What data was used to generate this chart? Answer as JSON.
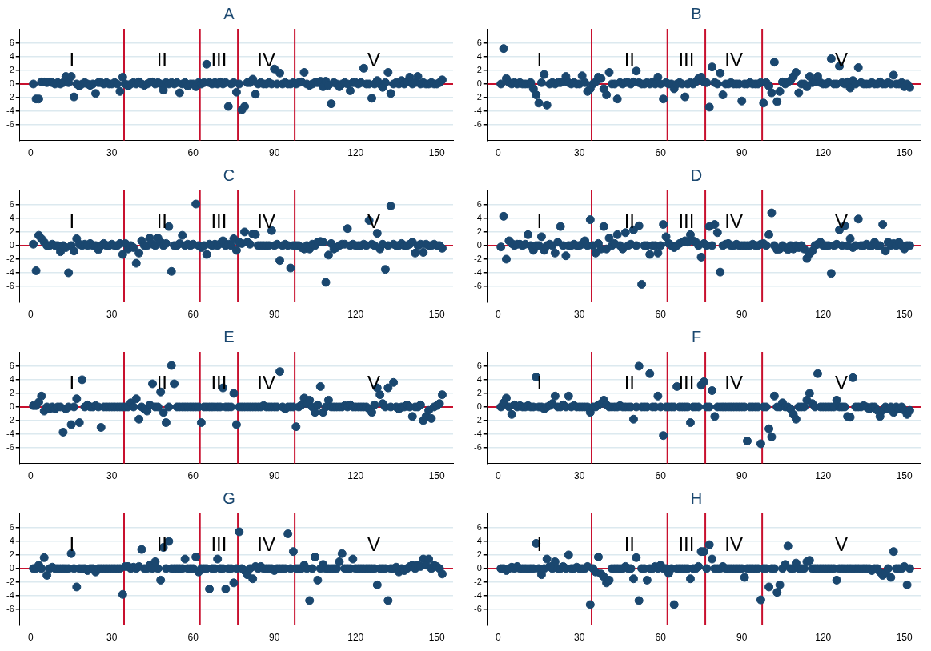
{
  "chart_data": [
    {
      "type": "scatter",
      "title": "A",
      "marker": "circle",
      "grid": "y",
      "color": "#1a476f",
      "xlim": [
        -4,
        156
      ],
      "xticks": [
        0,
        30,
        60,
        90,
        120,
        150
      ],
      "ylim": [
        -8.3,
        8.1
      ],
      "yticks": [
        -6,
        -4,
        -2,
        0,
        2,
        4,
        6
      ],
      "ref_lines": [
        {
          "axis": "y",
          "value": 0,
          "color": "#c8102e"
        },
        {
          "axis": "x",
          "value": 34.5,
          "color": "#c8102e"
        },
        {
          "axis": "x",
          "value": 62.5,
          "color": "#c8102e"
        },
        {
          "axis": "x",
          "value": 76.5,
          "color": "#c8102e"
        },
        {
          "axis": "x",
          "value": 97.5,
          "color": "#c8102e"
        }
      ],
      "annotations": [
        "I",
        "II",
        "III",
        "IV",
        "V"
      ],
      "x": [
        1,
        2,
        3,
        4,
        5,
        6,
        7,
        8,
        9,
        10,
        11,
        12,
        13,
        14,
        15,
        16,
        17,
        18,
        19,
        20,
        21,
        22,
        23,
        24,
        25,
        26,
        27,
        28,
        29,
        30,
        31,
        32,
        33,
        34,
        35,
        36,
        37,
        38,
        39,
        40,
        41,
        42,
        43,
        44,
        45,
        46,
        47,
        48,
        49,
        50,
        51,
        52,
        53,
        54,
        55,
        56,
        57,
        58,
        59,
        60,
        61,
        62,
        63,
        64,
        65,
        66,
        67,
        68,
        69,
        70,
        71,
        72,
        73,
        74,
        75,
        76,
        77,
        78,
        79,
        80,
        81,
        82,
        83,
        84,
        85,
        86,
        87,
        88,
        89,
        90,
        91,
        92,
        93,
        94,
        95,
        96,
        97,
        98,
        99,
        100,
        101,
        102,
        103,
        104,
        105,
        106,
        107,
        108,
        109,
        110,
        111,
        112,
        113,
        114,
        115,
        116,
        117,
        118,
        119,
        120,
        121,
        122,
        123,
        124,
        125,
        126,
        127,
        128,
        129,
        130,
        131,
        132,
        133,
        134,
        135,
        136,
        137,
        138,
        139,
        140,
        141,
        142,
        143,
        144,
        145,
        146,
        147,
        148,
        149,
        150,
        151,
        152
      ],
      "values": [
        0,
        -2.2,
        -2.2,
        0.3,
        0.3,
        0.2,
        0.3,
        0.2,
        0,
        0.2,
        0,
        0.2,
        1.1,
        0.2,
        1.1,
        -1.9,
        0,
        -0.3,
        0,
        0.2,
        0,
        -0.2,
        0,
        -1.4,
        0.2,
        0.2,
        0,
        0.2,
        0,
        0,
        0.2,
        0,
        -1.1,
        1,
        0,
        -0.3,
        0,
        0.2,
        0,
        0.3,
        0,
        -0.2,
        0,
        0.2,
        0.3,
        0,
        0.2,
        0,
        -0.9,
        0.2,
        0,
        0.2,
        0,
        0.2,
        -1.3,
        0,
        0.2,
        -0.3,
        0,
        0,
        -0.4,
        0.2,
        0,
        0.2,
        2.9,
        0.2,
        0,
        0.2,
        0,
        0.3,
        0,
        0.2,
        -3.3,
        0,
        0.2,
        -1.2,
        0,
        -3.8,
        -3.3,
        0.2,
        0.2,
        0.7,
        -1.5,
        0,
        0.2,
        0,
        0,
        0.2,
        0,
        2.2,
        0,
        1.6,
        0,
        0.2,
        0,
        0,
        0.2,
        0,
        0.2,
        0.3,
        1.7,
        0,
        -0.2,
        0,
        0.2,
        0.2,
        0.4,
        -0.4,
        0.4,
        -0.2,
        -2.9,
        0.2,
        0,
        -0.4,
        0,
        0.2,
        0,
        -1,
        0.2,
        0.2,
        0,
        0.2,
        2.3,
        0,
        0,
        -2.1,
        0,
        0.5,
        0,
        -0.5,
        0.2,
        1.7,
        -1.4,
        0,
        0.2,
        0,
        0.5,
        0,
        0.3,
        1,
        0,
        0.2,
        1.1,
        0,
        0.2,
        0,
        0,
        0.2,
        0,
        0,
        0.2,
        0.6
      ]
    },
    {
      "type": "scatter",
      "title": "B",
      "marker": "circle",
      "grid": "y",
      "color": "#1a476f",
      "xlim": [
        -4,
        156
      ],
      "xticks": [
        0,
        30,
        60,
        90,
        120,
        150
      ],
      "ylim": [
        -8.3,
        8.1
      ],
      "yticks": [
        -6,
        -4,
        -2,
        0,
        2,
        4,
        6
      ],
      "ref_lines": [
        {
          "axis": "y",
          "value": 0,
          "color": "#c8102e"
        },
        {
          "axis": "x",
          "value": 34.5,
          "color": "#c8102e"
        },
        {
          "axis": "x",
          "value": 62.5,
          "color": "#c8102e"
        },
        {
          "axis": "x",
          "value": 76.5,
          "color": "#c8102e"
        },
        {
          "axis": "x",
          "value": 97.5,
          "color": "#c8102e"
        }
      ],
      "annotations": [
        "I",
        "II",
        "III",
        "IV",
        "V"
      ],
      "x": [
        1,
        2,
        3,
        4,
        5,
        6,
        7,
        8,
        9,
        10,
        11,
        12,
        13,
        14,
        15,
        16,
        17,
        18,
        19,
        20,
        21,
        22,
        23,
        24,
        25,
        26,
        27,
        28,
        29,
        30,
        31,
        32,
        33,
        34,
        35,
        36,
        37,
        38,
        39,
        40,
        41,
        42,
        43,
        44,
        45,
        46,
        47,
        48,
        49,
        50,
        51,
        52,
        53,
        54,
        55,
        56,
        57,
        58,
        59,
        60,
        61,
        62,
        63,
        64,
        65,
        66,
        67,
        68,
        69,
        70,
        71,
        72,
        73,
        74,
        75,
        76,
        77,
        78,
        79,
        80,
        81,
        82,
        83,
        84,
        85,
        86,
        87,
        88,
        89,
        90,
        91,
        92,
        93,
        94,
        95,
        96,
        97,
        98,
        99,
        100,
        101,
        102,
        103,
        104,
        105,
        106,
        107,
        108,
        109,
        110,
        111,
        112,
        113,
        114,
        115,
        116,
        117,
        118,
        119,
        120,
        121,
        122,
        123,
        124,
        125,
        126,
        127,
        128,
        129,
        130,
        131,
        132,
        133,
        134,
        135,
        136,
        137,
        138,
        139,
        140,
        141,
        142,
        143,
        144,
        145,
        146,
        147,
        148,
        149,
        150,
        151,
        152
      ],
      "values": [
        0,
        5.2,
        0.8,
        0.2,
        0,
        0.2,
        0,
        0.2,
        0,
        0,
        0,
        0.2,
        -0.7,
        -1.6,
        -2.8,
        0.2,
        1.4,
        -3.1,
        0,
        0.2,
        0,
        0.2,
        0.2,
        0.3,
        1.1,
        0.2,
        0,
        0.2,
        0,
        0,
        1.2,
        0.2,
        -1.1,
        -0.7,
        0,
        0.3,
        1,
        0.8,
        -0.7,
        -1.6,
        1.7,
        0,
        0,
        -2.2,
        0.2,
        0,
        0.2,
        0.2,
        0,
        0.3,
        1.9,
        0.2,
        0,
        0,
        0.2,
        0,
        0.3,
        0,
        1,
        0,
        -2.2,
        0.2,
        0,
        0,
        -0.7,
        0,
        0.2,
        0,
        -1.9,
        0,
        0.2,
        0,
        0.3,
        0.8,
        1,
        0.3,
        0.2,
        -3.4,
        2.5,
        0.2,
        0,
        1.6,
        -1.6,
        0,
        0,
        0.2,
        0,
        0,
        0,
        -2.5,
        0,
        0,
        0.2,
        0,
        0,
        0,
        0.2,
        -2.8,
        0.2,
        -0.3,
        -1.3,
        3.2,
        -2.6,
        -1.1,
        0.3,
        0,
        0.3,
        0.5,
        1.1,
        1.7,
        -1.3,
        0,
        0,
        -0.4,
        1.1,
        0.2,
        0.3,
        1.1,
        0.2,
        0,
        0,
        0.2,
        3.7,
        0,
        0,
        2.6,
        0.2,
        0,
        0.3,
        -0.6,
        0.5,
        0,
        2.4,
        0.2,
        0,
        0,
        0,
        0.2,
        0,
        0,
        0.3,
        0,
        0,
        0.2,
        0,
        1.3,
        0,
        0,
        0.2,
        -0.4,
        0,
        -0.5
      ]
    },
    {
      "type": "scatter",
      "title": "C",
      "marker": "circle",
      "grid": "y",
      "color": "#1a476f",
      "xlim": [
        -4,
        156
      ],
      "xticks": [
        0,
        30,
        60,
        90,
        120,
        150
      ],
      "ylim": [
        -8.3,
        8.1
      ],
      "yticks": [
        -6,
        -4,
        -2,
        0,
        2,
        4,
        6
      ],
      "ref_lines": [
        {
          "axis": "y",
          "value": 0,
          "color": "#c8102e"
        },
        {
          "axis": "x",
          "value": 34.5,
          "color": "#c8102e"
        },
        {
          "axis": "x",
          "value": 62.5,
          "color": "#c8102e"
        },
        {
          "axis": "x",
          "value": 76.5,
          "color": "#c8102e"
        },
        {
          "axis": "x",
          "value": 97.5,
          "color": "#c8102e"
        }
      ],
      "annotations": [
        "I",
        "II",
        "III",
        "IV",
        "V"
      ],
      "x": [
        1,
        2,
        3,
        4,
        5,
        6,
        7,
        8,
        9,
        10,
        11,
        12,
        13,
        14,
        15,
        16,
        17,
        18,
        19,
        20,
        21,
        22,
        23,
        24,
        25,
        26,
        27,
        28,
        29,
        30,
        31,
        32,
        33,
        34,
        35,
        36,
        37,
        38,
        39,
        40,
        41,
        42,
        43,
        44,
        45,
        46,
        47,
        48,
        49,
        50,
        51,
        52,
        53,
        54,
        55,
        56,
        57,
        58,
        59,
        60,
        61,
        62,
        63,
        64,
        65,
        66,
        67,
        68,
        69,
        70,
        71,
        72,
        73,
        74,
        75,
        76,
        77,
        78,
        79,
        80,
        81,
        82,
        83,
        84,
        85,
        86,
        87,
        88,
        89,
        90,
        91,
        92,
        93,
        94,
        95,
        96,
        97,
        98,
        99,
        100,
        101,
        102,
        103,
        104,
        105,
        106,
        107,
        108,
        109,
        110,
        111,
        112,
        113,
        114,
        115,
        116,
        117,
        118,
        119,
        120,
        121,
        122,
        123,
        124,
        125,
        126,
        127,
        128,
        129,
        130,
        131,
        132,
        133,
        134,
        135,
        136,
        137,
        138,
        139,
        140,
        141,
        142,
        143,
        144,
        145,
        146,
        147,
        148,
        149,
        150,
        151,
        152
      ],
      "values": [
        0.2,
        -3.7,
        1.5,
        1,
        0.5,
        0,
        0,
        0.2,
        0,
        0,
        -0.9,
        0,
        -0.3,
        -4,
        0,
        -0.8,
        1,
        0.2,
        0,
        0.2,
        0,
        0.3,
        0,
        0,
        -0.6,
        0,
        0.3,
        0,
        0,
        0.2,
        0,
        0,
        0.3,
        -1.3,
        0.3,
        -0.5,
        0,
        -0.3,
        -2.6,
        -1.1,
        0.7,
        0,
        0,
        1.1,
        0.2,
        0,
        1.1,
        0.5,
        0,
        0.3,
        2.8,
        -3.8,
        0,
        0,
        0.3,
        1.5,
        0,
        0.2,
        0,
        0.2,
        6.1,
        0,
        -0.3,
        0,
        -1.3,
        0.2,
        0,
        0.2,
        0,
        0.3,
        0.7,
        0,
        0.2,
        0,
        1,
        -0.7,
        0.5,
        0.3,
        2,
        0.5,
        0.2,
        1.7,
        1.6,
        0,
        0,
        0,
        0,
        0,
        2.2,
        0,
        0.2,
        -2.2,
        0,
        0.2,
        0,
        -3.3,
        0,
        0,
        0,
        -0.3,
        -0.5,
        0,
        -0.5,
        0.2,
        0,
        0.5,
        0.6,
        0.5,
        -5.4,
        -1.4,
        0.3,
        -0.5,
        -0.3,
        0,
        0.2,
        0.2,
        2.5,
        0,
        0.2,
        0,
        0,
        0,
        0.2,
        0,
        3.7,
        0.2,
        0,
        1.8,
        -0.5,
        0.2,
        -3.5,
        0,
        5.8,
        0.2,
        0,
        0,
        0.3,
        0,
        0,
        0.2,
        0.5,
        -1.1,
        0,
        0.2,
        -1,
        0.2,
        0,
        0,
        0.2,
        0,
        0,
        -0.4
      ]
    },
    {
      "type": "scatter",
      "title": "D",
      "marker": "circle",
      "grid": "y",
      "color": "#1a476f",
      "xlim": [
        -4,
        156
      ],
      "xticks": [
        0,
        30,
        60,
        90,
        120,
        150
      ],
      "ylim": [
        -8.3,
        8.1
      ],
      "yticks": [
        -6,
        -4,
        -2,
        0,
        2,
        4,
        6
      ],
      "ref_lines": [
        {
          "axis": "y",
          "value": 0,
          "color": "#c8102e"
        },
        {
          "axis": "x",
          "value": 34.5,
          "color": "#c8102e"
        },
        {
          "axis": "x",
          "value": 62.5,
          "color": "#c8102e"
        },
        {
          "axis": "x",
          "value": 76.5,
          "color": "#c8102e"
        },
        {
          "axis": "x",
          "value": 97.5,
          "color": "#c8102e"
        }
      ],
      "annotations": [
        "I",
        "II",
        "III",
        "IV",
        "V"
      ],
      "x": [
        1,
        2,
        3,
        4,
        5,
        6,
        7,
        8,
        9,
        10,
        11,
        12,
        13,
        14,
        15,
        16,
        17,
        18,
        19,
        20,
        21,
        22,
        23,
        24,
        25,
        26,
        27,
        28,
        29,
        30,
        31,
        32,
        33,
        34,
        35,
        36,
        37,
        38,
        39,
        40,
        41,
        42,
        43,
        44,
        45,
        46,
        47,
        48,
        49,
        50,
        51,
        52,
        53,
        54,
        55,
        56,
        57,
        58,
        59,
        60,
        61,
        62,
        63,
        64,
        65,
        66,
        67,
        68,
        69,
        70,
        71,
        72,
        73,
        74,
        75,
        76,
        77,
        78,
        79,
        80,
        81,
        82,
        83,
        84,
        85,
        86,
        87,
        88,
        89,
        90,
        91,
        92,
        93,
        94,
        95,
        96,
        97,
        98,
        99,
        100,
        101,
        102,
        103,
        104,
        105,
        106,
        107,
        108,
        109,
        110,
        111,
        112,
        113,
        114,
        115,
        116,
        117,
        118,
        119,
        120,
        121,
        122,
        123,
        124,
        125,
        126,
        127,
        128,
        129,
        130,
        131,
        132,
        133,
        134,
        135,
        136,
        137,
        138,
        139,
        140,
        141,
        142,
        143,
        144,
        145,
        146,
        147,
        148,
        149,
        150,
        151,
        152
      ],
      "values": [
        -0.2,
        4.3,
        -2,
        0.7,
        0.3,
        0,
        0.2,
        0.2,
        0,
        0.2,
        1.6,
        0,
        -0.7,
        0,
        0,
        1.3,
        -0.7,
        0,
        0.2,
        0,
        -1.1,
        0.5,
        2.8,
        0,
        -1.5,
        0,
        0,
        0.2,
        0,
        0,
        0.2,
        0.7,
        0,
        3.8,
        0,
        -1.1,
        0.3,
        -0.5,
        2.8,
        -0.5,
        1.1,
        0,
        0.3,
        1.6,
        0,
        -0.5,
        1.9,
        0,
        0.2,
        2.3,
        0,
        2.9,
        -5.7,
        0,
        0,
        -1.3,
        0,
        0,
        -1.1,
        0,
        3.1,
        1.3,
        0.3,
        0,
        -0.3,
        0,
        0.3,
        0.5,
        0.7,
        0.5,
        1.6,
        0.7,
        0.5,
        0,
        -1.7,
        0.3,
        0,
        2.8,
        0,
        3.1,
        1.9,
        -3.9,
        0,
        0.2,
        0.3,
        0,
        0,
        0.2,
        0,
        0,
        0,
        0,
        0,
        0.2,
        0,
        0,
        0.2,
        0.3,
        0,
        1.6,
        4.8,
        0,
        -0.6,
        -0.5,
        0,
        -0.3,
        -0.6,
        0,
        -0.5,
        0,
        -0.3,
        0,
        -0.5,
        -1.9,
        -1.2,
        -0.8,
        0,
        0.2,
        0.5,
        0,
        0,
        0,
        -4.1,
        0,
        0.2,
        2.3,
        0,
        2.9,
        0,
        1,
        -0.3,
        0,
        3.9,
        0,
        0,
        0.2,
        0,
        0,
        0.5,
        0,
        0,
        3.1,
        -0.8,
        0.5,
        0,
        0.3,
        0,
        0.5,
        0,
        -0.5,
        0,
        0
      ]
    },
    {
      "type": "scatter",
      "title": "E",
      "marker": "circle",
      "grid": "y",
      "color": "#1a476f",
      "xlim": [
        -4,
        156
      ],
      "xticks": [
        0,
        30,
        60,
        90,
        120,
        150
      ],
      "ylim": [
        -8.3,
        8.1
      ],
      "yticks": [
        -6,
        -4,
        -2,
        0,
        2,
        4,
        6
      ],
      "ref_lines": [
        {
          "axis": "y",
          "value": 0,
          "color": "#c8102e"
        },
        {
          "axis": "x",
          "value": 34.5,
          "color": "#c8102e"
        },
        {
          "axis": "x",
          "value": 62.5,
          "color": "#c8102e"
        },
        {
          "axis": "x",
          "value": 76.5,
          "color": "#c8102e"
        },
        {
          "axis": "x",
          "value": 97.5,
          "color": "#c8102e"
        }
      ],
      "annotations": [
        "I",
        "II",
        "III",
        "IV",
        "V"
      ],
      "x": [
        1,
        2,
        3,
        4,
        5,
        6,
        7,
        8,
        9,
        10,
        11,
        12,
        13,
        14,
        15,
        16,
        17,
        18,
        19,
        20,
        21,
        22,
        23,
        24,
        25,
        26,
        27,
        28,
        29,
        30,
        31,
        32,
        33,
        34,
        35,
        36,
        37,
        38,
        39,
        40,
        41,
        42,
        43,
        44,
        45,
        46,
        47,
        48,
        49,
        50,
        51,
        52,
        53,
        54,
        55,
        56,
        57,
        58,
        59,
        60,
        61,
        62,
        63,
        64,
        65,
        66,
        67,
        68,
        69,
        70,
        71,
        72,
        73,
        74,
        75,
        76,
        77,
        78,
        79,
        80,
        81,
        82,
        83,
        84,
        85,
        86,
        87,
        88,
        89,
        90,
        91,
        92,
        93,
        94,
        95,
        96,
        97,
        98,
        99,
        100,
        101,
        102,
        103,
        104,
        105,
        106,
        107,
        108,
        109,
        110,
        111,
        112,
        113,
        114,
        115,
        116,
        117,
        118,
        119,
        120,
        121,
        122,
        123,
        124,
        125,
        126,
        127,
        128,
        129,
        130,
        131,
        132,
        133,
        134,
        135,
        136,
        137,
        138,
        139,
        140,
        141,
        142,
        143,
        144,
        145,
        146,
        147,
        148,
        149,
        150,
        151,
        152
      ],
      "values": [
        0.2,
        0.2,
        0.7,
        1.6,
        -0.6,
        0,
        -0.3,
        0,
        -0.3,
        0,
        0,
        -3.7,
        -0.3,
        0,
        -2.6,
        0,
        1.2,
        -2.3,
        4,
        0,
        0.3,
        0,
        0,
        0.2,
        0,
        -3,
        0,
        0,
        0,
        0,
        0,
        0,
        0,
        0,
        0,
        0,
        0.6,
        0,
        1.2,
        -1.8,
        0,
        -0.3,
        -0.6,
        0.3,
        3.4,
        0,
        0,
        2.2,
        -0.8,
        -2.3,
        0,
        6.1,
        3.4,
        0,
        0,
        0,
        0,
        0,
        0,
        0,
        0,
        0,
        -2.3,
        0,
        0,
        0,
        0,
        0,
        0,
        0,
        2.8,
        0,
        0,
        0,
        2,
        -2.6,
        0,
        0,
        0,
        0,
        0,
        0,
        0,
        0,
        0,
        0.2,
        0,
        0,
        0,
        0,
        0,
        5.2,
        0,
        -0.3,
        0,
        0,
        0,
        -2.9,
        0,
        0.3,
        1.3,
        0.5,
        1,
        0,
        -0.8,
        0.3,
        3,
        -0.8,
        0,
        1,
        0,
        0,
        0,
        0,
        0,
        0.2,
        0,
        0.3,
        0,
        0,
        0,
        0,
        0,
        0,
        -0.3,
        -0.8,
        0.3,
        2.8,
        1.8,
        0.5,
        0,
        2.8,
        0,
        3.6,
        0,
        -0.3,
        0,
        0,
        0.3,
        0,
        -1.4,
        0,
        0,
        0.3,
        -2,
        -1.4,
        -0.5,
        -1.7,
        0,
        0.2,
        0.5,
        1.8
      ]
    },
    {
      "type": "scatter",
      "title": "F",
      "marker": "circle",
      "grid": "y",
      "color": "#1a476f",
      "xlim": [
        -4,
        156
      ],
      "xticks": [
        0,
        30,
        60,
        90,
        120,
        150
      ],
      "ylim": [
        -8.3,
        8.1
      ],
      "yticks": [
        -6,
        -4,
        -2,
        0,
        2,
        4,
        6
      ],
      "ref_lines": [
        {
          "axis": "y",
          "value": 0,
          "color": "#c8102e"
        },
        {
          "axis": "x",
          "value": 34.5,
          "color": "#c8102e"
        },
        {
          "axis": "x",
          "value": 62.5,
          "color": "#c8102e"
        },
        {
          "axis": "x",
          "value": 76.5,
          "color": "#c8102e"
        },
        {
          "axis": "x",
          "value": 97.5,
          "color": "#c8102e"
        }
      ],
      "annotations": [
        "I",
        "II",
        "III",
        "IV",
        "V"
      ],
      "x": [
        1,
        2,
        3,
        4,
        5,
        6,
        7,
        8,
        9,
        10,
        11,
        12,
        13,
        14,
        15,
        16,
        17,
        18,
        19,
        20,
        21,
        22,
        23,
        24,
        25,
        26,
        27,
        28,
        29,
        30,
        31,
        32,
        33,
        34,
        35,
        36,
        37,
        38,
        39,
        40,
        41,
        42,
        43,
        44,
        45,
        46,
        47,
        48,
        49,
        50,
        51,
        52,
        53,
        54,
        55,
        56,
        57,
        58,
        59,
        60,
        61,
        62,
        63,
        64,
        65,
        66,
        67,
        68,
        69,
        70,
        71,
        72,
        73,
        74,
        75,
        76,
        77,
        78,
        79,
        80,
        81,
        82,
        83,
        84,
        85,
        86,
        87,
        88,
        89,
        90,
        91,
        92,
        93,
        94,
        95,
        96,
        97,
        98,
        99,
        100,
        101,
        102,
        103,
        104,
        105,
        106,
        107,
        108,
        109,
        110,
        111,
        112,
        113,
        114,
        115,
        116,
        117,
        118,
        119,
        120,
        121,
        122,
        123,
        124,
        125,
        126,
        127,
        128,
        129,
        130,
        131,
        132,
        133,
        134,
        135,
        136,
        137,
        138,
        139,
        140,
        141,
        142,
        143,
        144,
        145,
        146,
        147,
        148,
        149,
        150,
        151,
        152
      ],
      "values": [
        0,
        0.6,
        1.3,
        0,
        -1.1,
        0.3,
        0,
        0.2,
        0,
        0,
        0.2,
        0,
        0,
        4.4,
        0,
        0,
        -0.3,
        0,
        0.2,
        0.5,
        1.6,
        0,
        0,
        0.3,
        0,
        1.6,
        0,
        0.2,
        0,
        0,
        0,
        0,
        0,
        -0.8,
        0,
        0,
        0.3,
        0.5,
        1,
        0.3,
        0,
        0,
        0,
        0,
        0.2,
        0,
        0,
        0,
        0,
        -1.8,
        0,
        6,
        0,
        0,
        0,
        4.9,
        0,
        0,
        1.6,
        0,
        -4.2,
        0,
        0,
        0,
        0,
        3,
        0,
        0,
        0,
        0,
        -2.3,
        0,
        0,
        0,
        3.2,
        3.7,
        0,
        0,
        2.4,
        -1.4,
        0,
        0,
        0,
        0,
        0,
        0,
        0,
        0,
        0,
        0,
        0,
        -5,
        0,
        0,
        0,
        0,
        -5.4,
        0,
        0,
        -3.2,
        -4.4,
        1.6,
        0,
        0,
        0.6,
        0,
        0,
        -0.3,
        -1.1,
        -1.8,
        0,
        0,
        0,
        1,
        2,
        0.5,
        0,
        4.9,
        0,
        0,
        0,
        0,
        0,
        0,
        1,
        0,
        0,
        0,
        -1.4,
        -1.5,
        4.3,
        0,
        0,
        0,
        0.2,
        0,
        -0.3,
        0,
        0,
        -0.5,
        -1.4,
        -0.5,
        0,
        -0.3,
        0,
        -0.8,
        0,
        -0.3,
        0,
        -0.5,
        -1.1,
        -0.5
      ]
    },
    {
      "type": "scatter",
      "title": "G",
      "marker": "circle",
      "grid": "y",
      "color": "#1a476f",
      "xlim": [
        -4,
        156
      ],
      "xticks": [
        0,
        30,
        60,
        90,
        120,
        150
      ],
      "ylim": [
        -8.3,
        8.1
      ],
      "yticks": [
        -6,
        -4,
        -2,
        0,
        2,
        4,
        6
      ],
      "ref_lines": [
        {
          "axis": "y",
          "value": 0,
          "color": "#c8102e"
        },
        {
          "axis": "x",
          "value": 34.5,
          "color": "#c8102e"
        },
        {
          "axis": "x",
          "value": 62.5,
          "color": "#c8102e"
        },
        {
          "axis": "x",
          "value": 76.5,
          "color": "#c8102e"
        },
        {
          "axis": "x",
          "value": 97.5,
          "color": "#c8102e"
        }
      ],
      "annotations": [
        "I",
        "II",
        "III",
        "IV",
        "V"
      ],
      "x": [
        1,
        2,
        3,
        4,
        5,
        6,
        7,
        8,
        9,
        10,
        11,
        12,
        13,
        14,
        15,
        16,
        17,
        18,
        19,
        20,
        21,
        22,
        23,
        24,
        25,
        26,
        27,
        28,
        29,
        30,
        31,
        32,
        33,
        34,
        35,
        36,
        37,
        38,
        39,
        40,
        41,
        42,
        43,
        44,
        45,
        46,
        47,
        48,
        49,
        50,
        51,
        52,
        53,
        54,
        55,
        56,
        57,
        58,
        59,
        60,
        61,
        62,
        63,
        64,
        65,
        66,
        67,
        68,
        69,
        70,
        71,
        72,
        73,
        74,
        75,
        76,
        77,
        78,
        79,
        80,
        81,
        82,
        83,
        84,
        85,
        86,
        87,
        88,
        89,
        90,
        91,
        92,
        93,
        94,
        95,
        96,
        97,
        98,
        99,
        100,
        101,
        102,
        103,
        104,
        105,
        106,
        107,
        108,
        109,
        110,
        111,
        112,
        113,
        114,
        115,
        116,
        117,
        118,
        119,
        120,
        121,
        122,
        123,
        124,
        125,
        126,
        127,
        128,
        129,
        130,
        131,
        132,
        133,
        134,
        135,
        136,
        137,
        138,
        139,
        140,
        141,
        142,
        143,
        144,
        145,
        146,
        147,
        148,
        149,
        150,
        151,
        152
      ],
      "values": [
        0,
        0,
        0.5,
        0,
        1.6,
        -1,
        0,
        0.2,
        0,
        0,
        0,
        0,
        0,
        0,
        2.2,
        0,
        -2.7,
        0,
        0,
        0,
        -0.3,
        0,
        0,
        -0.5,
        0,
        0,
        0,
        0,
        0,
        0,
        0,
        0,
        0,
        -3.8,
        0.3,
        0.3,
        0,
        0.2,
        0,
        0.3,
        2.8,
        0,
        0,
        0.5,
        0,
        1,
        0,
        -1.7,
        3.1,
        0,
        4,
        0,
        0,
        0,
        0,
        0,
        1.4,
        0,
        0,
        0,
        1.7,
        -0.5,
        0,
        0,
        0,
        -3,
        0,
        0,
        1.4,
        0,
        0,
        -3,
        0,
        0,
        -2.1,
        0,
        5.4,
        0,
        -0.3,
        -0.9,
        0,
        -1.5,
        0.3,
        0,
        0.3,
        0,
        0,
        0,
        0,
        -0.3,
        0,
        0,
        0,
        0,
        5.1,
        0,
        2.5,
        0,
        0,
        0,
        0.5,
        0,
        -4.7,
        0,
        1.7,
        -1.7,
        0,
        0.6,
        0,
        0,
        0,
        0,
        0,
        1,
        2.2,
        0,
        0,
        0,
        1.4,
        0,
        0,
        0,
        0,
        0,
        0,
        0,
        0,
        -2.4,
        0,
        0,
        0,
        -4.7,
        0,
        0,
        0.2,
        -0.5,
        0,
        -0.3,
        0,
        0.3,
        0.5,
        0,
        0.5,
        0.3,
        1.4,
        0.5,
        1.4,
        0,
        0.5,
        0.3,
        0,
        -0.8
      ]
    },
    {
      "type": "scatter",
      "title": "H",
      "marker": "circle",
      "grid": "y",
      "color": "#1a476f",
      "xlim": [
        -4,
        156
      ],
      "xticks": [
        0,
        30,
        60,
        90,
        120,
        150
      ],
      "ylim": [
        -8.3,
        8.1
      ],
      "yticks": [
        -6,
        -4,
        -2,
        0,
        2,
        4,
        6
      ],
      "ref_lines": [
        {
          "axis": "y",
          "value": 0,
          "color": "#c8102e"
        },
        {
          "axis": "x",
          "value": 34.5,
          "color": "#c8102e"
        },
        {
          "axis": "x",
          "value": 62.5,
          "color": "#c8102e"
        },
        {
          "axis": "x",
          "value": 76.5,
          "color": "#c8102e"
        },
        {
          "axis": "x",
          "value": 97.5,
          "color": "#c8102e"
        }
      ],
      "annotations": [
        "I",
        "II",
        "III",
        "IV",
        "V"
      ],
      "x": [
        1,
        2,
        3,
        4,
        5,
        6,
        7,
        8,
        9,
        10,
        11,
        12,
        13,
        14,
        15,
        16,
        17,
        18,
        19,
        20,
        21,
        22,
        23,
        24,
        25,
        26,
        27,
        28,
        29,
        30,
        31,
        32,
        33,
        34,
        35,
        36,
        37,
        38,
        39,
        40,
        41,
        42,
        43,
        44,
        45,
        46,
        47,
        48,
        49,
        50,
        51,
        52,
        53,
        54,
        55,
        56,
        57,
        58,
        59,
        60,
        61,
        62,
        63,
        64,
        65,
        66,
        67,
        68,
        69,
        70,
        71,
        72,
        73,
        74,
        75,
        76,
        77,
        78,
        79,
        80,
        81,
        82,
        83,
        84,
        85,
        86,
        87,
        88,
        89,
        90,
        91,
        92,
        93,
        94,
        95,
        96,
        97,
        98,
        99,
        100,
        101,
        102,
        103,
        104,
        105,
        106,
        107,
        108,
        109,
        110,
        111,
        112,
        113,
        114,
        115,
        116,
        117,
        118,
        119,
        120,
        121,
        122,
        123,
        124,
        125,
        126,
        127,
        128,
        129,
        130,
        131,
        132,
        133,
        134,
        135,
        136,
        137,
        138,
        139,
        140,
        141,
        142,
        143,
        144,
        145,
        146,
        147,
        148,
        149,
        150,
        151,
        152
      ],
      "values": [
        0,
        0,
        -0.3,
        0,
        0.2,
        0,
        0.3,
        0,
        0,
        0,
        0,
        0,
        0,
        3.7,
        0,
        -0.9,
        0,
        1.4,
        0.3,
        0,
        1,
        0,
        0,
        0.3,
        0,
        2,
        0,
        0,
        0.2,
        0,
        0,
        0,
        0.3,
        -5.3,
        0,
        -0.5,
        1.7,
        -0.8,
        -1.2,
        -2.1,
        -1.7,
        0,
        0,
        0,
        0,
        0,
        0.3,
        0,
        0,
        -1.5,
        1.6,
        -4.7,
        0,
        0,
        -1.7,
        0,
        0,
        0.3,
        0,
        0.5,
        0,
        0,
        -0.7,
        0,
        -5.3,
        0,
        0,
        0,
        0,
        0,
        -1.5,
        0,
        0,
        0.3,
        2.5,
        2.5,
        0,
        3.5,
        1.4,
        0,
        0,
        0,
        0.3,
        0,
        0,
        0,
        0,
        0,
        0,
        0,
        -1.3,
        0,
        0,
        0,
        0,
        0,
        -4.6,
        0,
        0,
        -2.7,
        0,
        0,
        -3.5,
        -2.4,
        0,
        0.6,
        3.3,
        0,
        0,
        0.8,
        0,
        0,
        0,
        1,
        1.2,
        0,
        0,
        0,
        0,
        0,
        0,
        0,
        0,
        0,
        -1.7,
        0,
        0,
        0,
        0,
        0,
        0,
        0,
        0,
        0,
        0,
        0,
        0,
        -0.3,
        0,
        0,
        -0.5,
        -1,
        -0.6,
        0,
        -1.3,
        2.5,
        0,
        0,
        0,
        0.3,
        -2.4,
        0
      ]
    }
  ]
}
